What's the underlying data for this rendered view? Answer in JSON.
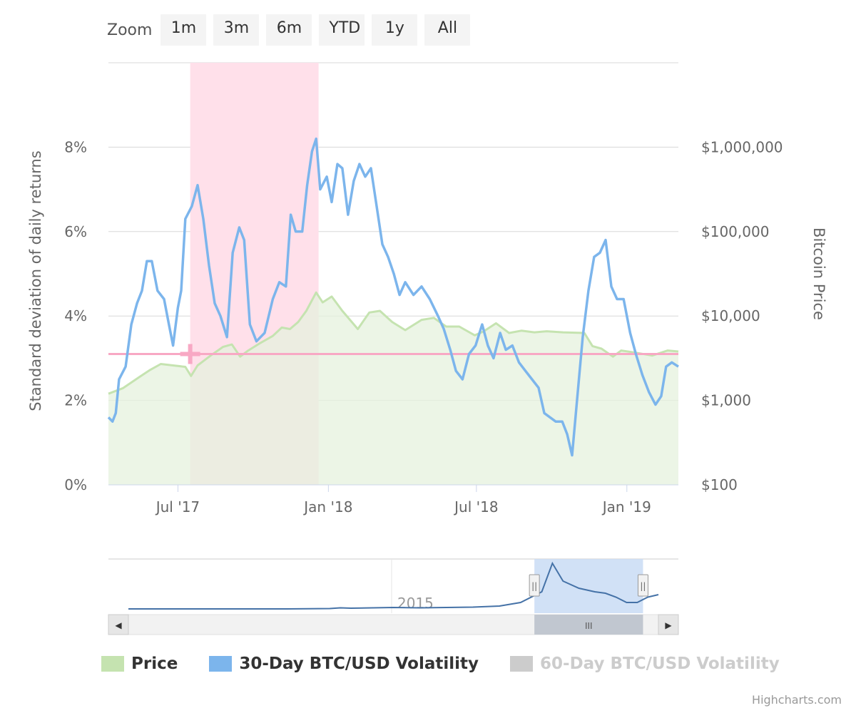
{
  "zoom": {
    "label": "Zoom",
    "buttons": [
      "1m",
      "3m",
      "6m",
      "YTD",
      "1y",
      "All"
    ]
  },
  "colors": {
    "price": "#c5e3b0",
    "price_area": "#e6f2dd",
    "vol30": "#7cb5ec",
    "vol60": "#cccccc",
    "band": "#ffe0ea",
    "plotline": "#f8a8c4",
    "navigator_line": "#4572a7",
    "navigator_mask": "#c9dcf5"
  },
  "chart_data": {
    "type": "line",
    "x_tick_labels": [
      "Jul '17",
      "Jan '18",
      "Jul '18",
      "Jan '19"
    ],
    "x_ticks": [
      "2017-07-01",
      "2018-01-01",
      "2018-07-01",
      "2019-01-01"
    ],
    "x_range": [
      "2017-04-07",
      "2019-03-05"
    ],
    "y_left": {
      "title": "Standard deviation of daily returns",
      "tick_labels": [
        "0%",
        "2%",
        "4%",
        "6%",
        "8%"
      ],
      "range": [
        0,
        10
      ]
    },
    "y_right": {
      "title": "Bitcoin Price",
      "scale": "log",
      "tick_labels": [
        "$100",
        "$1,000",
        "$10,000",
        "$100,000",
        "$1,000,000"
      ],
      "range": [
        100,
        10000000
      ]
    },
    "plot_band": {
      "from": "2017-07-16",
      "to": "2017-12-20"
    },
    "plot_line_value": "3.1%",
    "series": [
      {
        "name": "Price",
        "type": "area",
        "axis": "right",
        "points": [
          [
            "2017-04-07",
            1200
          ],
          [
            "2017-04-25",
            1400
          ],
          [
            "2017-05-15",
            1900
          ],
          [
            "2017-05-28",
            2300
          ],
          [
            "2017-06-10",
            2700
          ],
          [
            "2017-06-25",
            2600
          ],
          [
            "2017-07-10",
            2500
          ],
          [
            "2017-07-17",
            1950
          ],
          [
            "2017-07-25",
            2600
          ],
          [
            "2017-08-10",
            3400
          ],
          [
            "2017-08-25",
            4300
          ],
          [
            "2017-09-05",
            4600
          ],
          [
            "2017-09-15",
            3300
          ],
          [
            "2017-09-25",
            3900
          ],
          [
            "2017-10-10",
            4800
          ],
          [
            "2017-10-25",
            5800
          ],
          [
            "2017-11-05",
            7300
          ],
          [
            "2017-11-15",
            7000
          ],
          [
            "2017-11-25",
            8500
          ],
          [
            "2017-12-05",
            11500
          ],
          [
            "2017-12-17",
            19000
          ],
          [
            "2017-12-25",
            14500
          ],
          [
            "2018-01-05",
            17000
          ],
          [
            "2018-01-18",
            11500
          ],
          [
            "2018-02-06",
            7000
          ],
          [
            "2018-02-20",
            11000
          ],
          [
            "2018-03-05",
            11500
          ],
          [
            "2018-03-20",
            8500
          ],
          [
            "2018-04-05",
            6800
          ],
          [
            "2018-04-25",
            9000
          ],
          [
            "2018-05-10",
            9500
          ],
          [
            "2018-05-25",
            7500
          ],
          [
            "2018-06-10",
            7500
          ],
          [
            "2018-06-29",
            5900
          ],
          [
            "2018-07-10",
            6600
          ],
          [
            "2018-07-25",
            8200
          ],
          [
            "2018-08-10",
            6300
          ],
          [
            "2018-08-25",
            6700
          ],
          [
            "2018-09-10",
            6400
          ],
          [
            "2018-09-25",
            6600
          ],
          [
            "2018-10-15",
            6400
          ],
          [
            "2018-11-10",
            6300
          ],
          [
            "2018-11-20",
            4400
          ],
          [
            "2018-12-01",
            4100
          ],
          [
            "2018-12-15",
            3300
          ],
          [
            "2018-12-25",
            3900
          ],
          [
            "2019-01-10",
            3700
          ],
          [
            "2019-02-01",
            3400
          ],
          [
            "2019-02-20",
            3900
          ],
          [
            "2019-03-05",
            3800
          ]
        ]
      },
      {
        "name": "30-Day BTC/USD Volatility",
        "type": "line",
        "axis": "left",
        "points": [
          [
            "2017-04-07",
            1.6
          ],
          [
            "2017-04-12",
            1.5
          ],
          [
            "2017-04-16",
            1.7
          ],
          [
            "2017-04-20",
            2.5
          ],
          [
            "2017-04-28",
            2.8
          ],
          [
            "2017-05-05",
            3.8
          ],
          [
            "2017-05-12",
            4.3
          ],
          [
            "2017-05-18",
            4.6
          ],
          [
            "2017-05-24",
            5.3
          ],
          [
            "2017-05-30",
            5.3
          ],
          [
            "2017-06-06",
            4.6
          ],
          [
            "2017-06-14",
            4.4
          ],
          [
            "2017-06-20",
            3.8
          ],
          [
            "2017-06-25",
            3.3
          ],
          [
            "2017-07-01",
            4.2
          ],
          [
            "2017-07-05",
            4.6
          ],
          [
            "2017-07-10",
            6.3
          ],
          [
            "2017-07-18",
            6.6
          ],
          [
            "2017-07-25",
            7.1
          ],
          [
            "2017-08-01",
            6.3
          ],
          [
            "2017-08-08",
            5.2
          ],
          [
            "2017-08-15",
            4.3
          ],
          [
            "2017-08-22",
            4.0
          ],
          [
            "2017-08-30",
            3.5
          ],
          [
            "2017-09-06",
            5.5
          ],
          [
            "2017-09-14",
            6.1
          ],
          [
            "2017-09-20",
            5.8
          ],
          [
            "2017-09-27",
            3.8
          ],
          [
            "2017-10-05",
            3.4
          ],
          [
            "2017-10-15",
            3.6
          ],
          [
            "2017-10-25",
            4.4
          ],
          [
            "2017-11-02",
            4.8
          ],
          [
            "2017-11-10",
            4.7
          ],
          [
            "2017-11-16",
            6.4
          ],
          [
            "2017-11-22",
            6.0
          ],
          [
            "2017-11-30",
            6.0
          ],
          [
            "2017-12-06",
            7.1
          ],
          [
            "2017-12-12",
            7.9
          ],
          [
            "2017-12-17",
            8.2
          ],
          [
            "2017-12-22",
            7.0
          ],
          [
            "2017-12-30",
            7.3
          ],
          [
            "2018-01-05",
            6.7
          ],
          [
            "2018-01-12",
            7.6
          ],
          [
            "2018-01-18",
            7.5
          ],
          [
            "2018-01-25",
            6.4
          ],
          [
            "2018-02-01",
            7.2
          ],
          [
            "2018-02-08",
            7.6
          ],
          [
            "2018-02-15",
            7.3
          ],
          [
            "2018-02-22",
            7.5
          ],
          [
            "2018-03-01",
            6.6
          ],
          [
            "2018-03-08",
            5.7
          ],
          [
            "2018-03-15",
            5.4
          ],
          [
            "2018-03-22",
            5.0
          ],
          [
            "2018-03-29",
            4.5
          ],
          [
            "2018-04-05",
            4.8
          ],
          [
            "2018-04-15",
            4.5
          ],
          [
            "2018-04-25",
            4.7
          ],
          [
            "2018-05-05",
            4.4
          ],
          [
            "2018-05-15",
            4.0
          ],
          [
            "2018-05-22",
            3.7
          ],
          [
            "2018-05-30",
            3.2
          ],
          [
            "2018-06-06",
            2.7
          ],
          [
            "2018-06-14",
            2.5
          ],
          [
            "2018-06-22",
            3.1
          ],
          [
            "2018-06-30",
            3.3
          ],
          [
            "2018-07-08",
            3.8
          ],
          [
            "2018-07-15",
            3.3
          ],
          [
            "2018-07-22",
            3.0
          ],
          [
            "2018-07-30",
            3.6
          ],
          [
            "2018-08-06",
            3.2
          ],
          [
            "2018-08-14",
            3.3
          ],
          [
            "2018-08-22",
            2.9
          ],
          [
            "2018-08-30",
            2.7
          ],
          [
            "2018-09-07",
            2.5
          ],
          [
            "2018-09-15",
            2.3
          ],
          [
            "2018-09-22",
            1.7
          ],
          [
            "2018-09-29",
            1.6
          ],
          [
            "2018-10-06",
            1.5
          ],
          [
            "2018-10-14",
            1.5
          ],
          [
            "2018-10-20",
            1.2
          ],
          [
            "2018-10-26",
            0.7
          ],
          [
            "2018-11-01",
            2.0
          ],
          [
            "2018-11-08",
            3.5
          ],
          [
            "2018-11-15",
            4.6
          ],
          [
            "2018-11-22",
            5.4
          ],
          [
            "2018-11-29",
            5.5
          ],
          [
            "2018-12-06",
            5.8
          ],
          [
            "2018-12-13",
            4.7
          ],
          [
            "2018-12-20",
            4.4
          ],
          [
            "2018-12-28",
            4.4
          ],
          [
            "2019-01-05",
            3.6
          ],
          [
            "2019-01-12",
            3.1
          ],
          [
            "2019-01-20",
            2.6
          ],
          [
            "2019-01-28",
            2.2
          ],
          [
            "2019-02-05",
            1.9
          ],
          [
            "2019-02-12",
            2.1
          ],
          [
            "2019-02-18",
            2.8
          ],
          [
            "2019-02-25",
            2.9
          ],
          [
            "2019-03-05",
            2.8
          ]
        ]
      },
      {
        "name": "60-Day BTC/USD Volatility",
        "type": "line",
        "axis": "left",
        "visible": false,
        "points": []
      }
    ]
  },
  "navigator": {
    "label": "2015",
    "handle_glyph": "||",
    "scrollbar_glyph": "III",
    "left_arrow": "◀",
    "right_arrow": "▶",
    "points": [
      [
        0.0,
        0.2
      ],
      [
        0.1,
        0.2
      ],
      [
        0.2,
        0.2
      ],
      [
        0.3,
        0.2
      ],
      [
        0.38,
        0.3
      ],
      [
        0.4,
        0.5
      ],
      [
        0.42,
        0.4
      ],
      [
        0.5,
        0.6
      ],
      [
        0.55,
        0.5
      ],
      [
        0.6,
        0.6
      ],
      [
        0.65,
        0.7
      ],
      [
        0.7,
        1.0
      ],
      [
        0.74,
        2.0
      ],
      [
        0.78,
        5.0
      ],
      [
        0.8,
        13.0
      ],
      [
        0.82,
        8.0
      ],
      [
        0.85,
        6.0
      ],
      [
        0.88,
        5.0
      ],
      [
        0.9,
        4.6
      ],
      [
        0.92,
        3.5
      ],
      [
        0.94,
        2.0
      ],
      [
        0.96,
        2.0
      ],
      [
        0.98,
        3.5
      ],
      [
        1.0,
        4.2
      ]
    ],
    "window": [
      0.766,
      0.971
    ]
  },
  "legend": [
    {
      "label": "Price",
      "color": "#c5e3b0",
      "active": true
    },
    {
      "label": "30-Day BTC/USD Volatility",
      "color": "#7cb5ec",
      "active": true
    },
    {
      "label": "60-Day BTC/USD Volatility",
      "color": "#cccccc",
      "active": false
    }
  ],
  "credits": "Highcharts.com"
}
